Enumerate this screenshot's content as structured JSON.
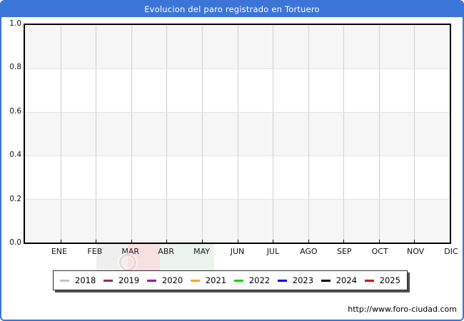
{
  "window": {
    "title": "Evolucion del paro registrado en Tortuero"
  },
  "axes": {
    "y_ticks": [
      "1.0",
      "0.8",
      "0.6",
      "0.4",
      "0.2",
      "0.0"
    ],
    "x_labels": [
      "ENE",
      "FEB",
      "MAR",
      "ABR",
      "MAY",
      "JUN",
      "JUL",
      "AGO",
      "SEP",
      "OCT",
      "NOV",
      "DIC"
    ]
  },
  "legend": {
    "items": [
      {
        "label": "2018",
        "color": "#c0c0c0"
      },
      {
        "label": "2019",
        "color": "#a03030"
      },
      {
        "label": "2020",
        "color": "#9900cc"
      },
      {
        "label": "2021",
        "color": "#ffa500"
      },
      {
        "label": "2022",
        "color": "#00d400"
      },
      {
        "label": "2023",
        "color": "#0000dd"
      },
      {
        "label": "2024",
        "color": "#000000"
      },
      {
        "label": "2025",
        "color": "#dd0000"
      }
    ]
  },
  "footer": {
    "url": "http://www.foro-ciudad.com"
  },
  "colors": {
    "titlebar": "#3b75d7",
    "frame_border": "#3b75d7",
    "band_gray": "#f6f6f6",
    "gridline": "#cfcfcf"
  },
  "chart_data": {
    "type": "line",
    "title": "Evolucion del paro registrado en Tortuero",
    "x_labels": [
      "ENE",
      "FEB",
      "MAR",
      "ABR",
      "MAY",
      "JUN",
      "JUL",
      "AGO",
      "SEP",
      "OCT",
      "NOV",
      "DIC"
    ],
    "ylim": [
      0.0,
      1.0
    ],
    "y_tick_values": [
      0.0,
      0.2,
      0.4,
      0.6,
      0.8,
      1.0
    ],
    "grid": true,
    "legend_position": "bottom",
    "series": [
      {
        "name": "2018",
        "color": "#c0c0c0",
        "values": []
      },
      {
        "name": "2019",
        "color": "#a03030",
        "values": []
      },
      {
        "name": "2020",
        "color": "#9900cc",
        "values": []
      },
      {
        "name": "2021",
        "color": "#ffa500",
        "values": []
      },
      {
        "name": "2022",
        "color": "#00d400",
        "values": []
      },
      {
        "name": "2023",
        "color": "#0000dd",
        "values": []
      },
      {
        "name": "2024",
        "color": "#000000",
        "values": []
      },
      {
        "name": "2025",
        "color": "#dd0000",
        "values": []
      }
    ]
  }
}
